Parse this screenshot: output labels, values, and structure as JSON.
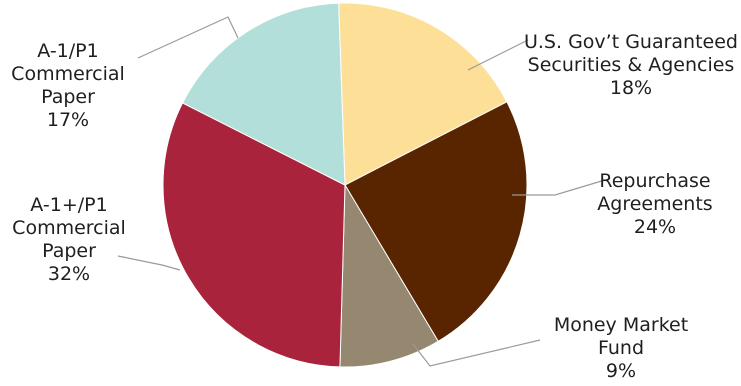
{
  "chart_data": {
    "type": "pie",
    "title": "",
    "slices": [
      {
        "label_lines": [
          "U.S. Gov’t Guaranteed",
          "Securities & Agencies"
        ],
        "pct_label": "18%",
        "value": 18,
        "color": "#FDDF97"
      },
      {
        "label_lines": [
          "Repurchase",
          "Agreements"
        ],
        "pct_label": "24%",
        "value": 24,
        "color": "#582500"
      },
      {
        "label_lines": [
          "Money Market",
          "Fund"
        ],
        "pct_label": "9%",
        "value": 9,
        "color": "#958770"
      },
      {
        "label_lines": [
          "A-1+/P1",
          "Commercial",
          "Paper"
        ],
        "pct_label": "32%",
        "value": 32,
        "color": "#A9233C"
      },
      {
        "label_lines": [
          "A-1/P1",
          "Commercial",
          "Paper"
        ],
        "pct_label": "17%",
        "value": 17,
        "color": "#B3DFDB"
      }
    ]
  }
}
